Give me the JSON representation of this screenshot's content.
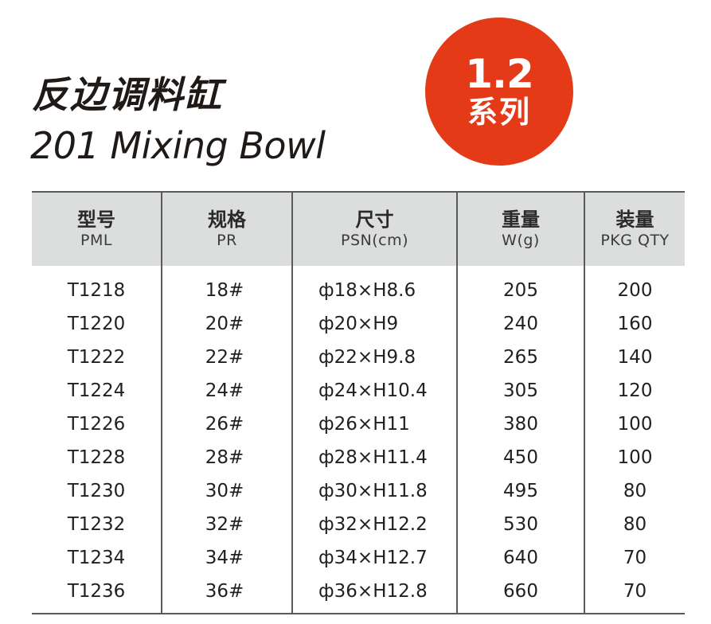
{
  "title": {
    "cn": "反边调料缸",
    "en": "201 Mixing Bowl"
  },
  "badge": {
    "number": "1.2",
    "label": "系列",
    "color": "#e53a17"
  },
  "table": {
    "headers": [
      {
        "cn": "型号",
        "en": "PML"
      },
      {
        "cn": "规格",
        "en": "PR"
      },
      {
        "cn": "尺寸",
        "en": "PSN(cm)"
      },
      {
        "cn": "重量",
        "en": "W(g)"
      },
      {
        "cn": "装量",
        "en": "PKG QTY"
      }
    ],
    "rows": [
      [
        "T1218",
        "18#",
        "ф18×H8.6",
        "205",
        "200"
      ],
      [
        "T1220",
        "20#",
        "ф20×H9",
        "240",
        "160"
      ],
      [
        "T1222",
        "22#",
        "ф22×H9.8",
        "265",
        "140"
      ],
      [
        "T1224",
        "24#",
        "ф24×H10.4",
        "305",
        "120"
      ],
      [
        "T1226",
        "26#",
        "ф26×H11",
        "380",
        "100"
      ],
      [
        "T1228",
        "28#",
        "ф28×H11.4",
        "450",
        "100"
      ],
      [
        "T1230",
        "30#",
        "ф30×H11.8",
        "495",
        "80"
      ],
      [
        "T1232",
        "32#",
        "ф32×H12.2",
        "530",
        "80"
      ],
      [
        "T1234",
        "34#",
        "ф34×H12.7",
        "640",
        "70"
      ],
      [
        "T1236",
        "36#",
        "ф36×H12.8",
        "660",
        "70"
      ]
    ],
    "header_bg": "#dcdddd"
  }
}
